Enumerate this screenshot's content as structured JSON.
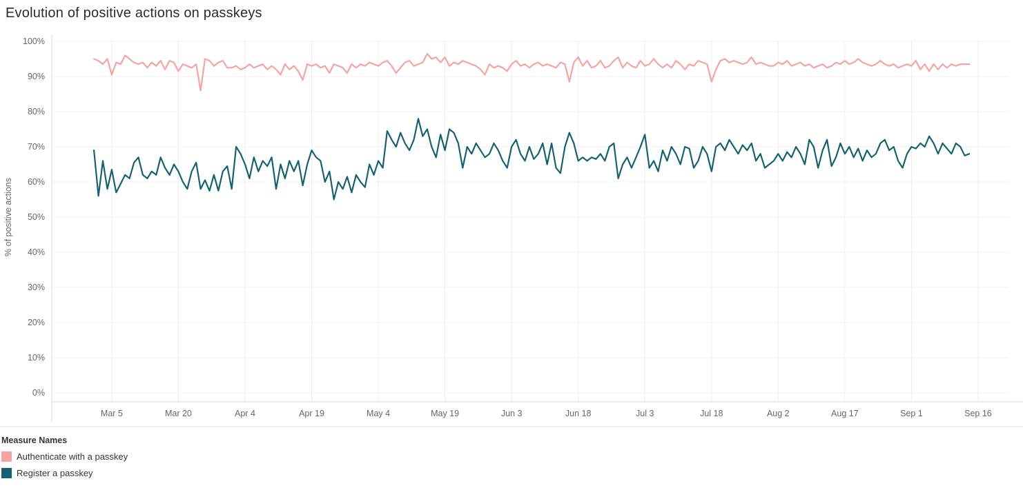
{
  "title": "Evolution of positive actions on passkeys",
  "chart_data": {
    "type": "line",
    "title": "Evolution of positive actions on passkeys",
    "xlabel": "",
    "ylabel": "% of positive actions",
    "ylim": [
      0,
      100
    ],
    "grid": true,
    "legend_position": "bottom-left",
    "legend_title": "Measure Names",
    "x_domain": [
      -9.5,
      206
    ],
    "y_ticks": [
      {
        "value": 0,
        "label": "0%"
      },
      {
        "value": 10,
        "label": "10%"
      },
      {
        "value": 20,
        "label": "20%"
      },
      {
        "value": 30,
        "label": "30%"
      },
      {
        "value": 40,
        "label": "40%"
      },
      {
        "value": 50,
        "label": "50%"
      },
      {
        "value": 60,
        "label": "60%"
      },
      {
        "value": 70,
        "label": "70%"
      },
      {
        "value": 80,
        "label": "80%"
      },
      {
        "value": 90,
        "label": "90%"
      },
      {
        "value": 100,
        "label": "100%"
      }
    ],
    "x_ticks": [
      {
        "index": 4,
        "label": "Mar 5"
      },
      {
        "index": 19,
        "label": "Mar 20"
      },
      {
        "index": 34,
        "label": "Apr 4"
      },
      {
        "index": 49,
        "label": "Apr 19"
      },
      {
        "index": 64,
        "label": "May 4"
      },
      {
        "index": 79,
        "label": "May 19"
      },
      {
        "index": 94,
        "label": "Jun 3"
      },
      {
        "index": 109,
        "label": "Jun 18"
      },
      {
        "index": 124,
        "label": "Jul 3"
      },
      {
        "index": 139,
        "label": "Jul 18"
      },
      {
        "index": 154,
        "label": "Aug 2"
      },
      {
        "index": 169,
        "label": "Aug 17"
      },
      {
        "index": 184,
        "label": "Sep 1"
      },
      {
        "index": 199,
        "label": "Sep 16"
      }
    ],
    "x_start_date": "Mar 1",
    "x_unit": "day",
    "series": [
      {
        "name": "Authenticate with a passkey",
        "color": "#f4a4a0",
        "values": [
          95,
          94.5,
          93.5,
          95,
          90.5,
          94,
          93.5,
          96,
          95,
          94,
          93.5,
          94,
          92.5,
          94,
          93,
          94.5,
          92,
          94.5,
          94,
          91.5,
          93.5,
          93,
          92.5,
          93.5,
          86,
          95,
          94.5,
          93,
          94,
          94.5,
          92.5,
          92.5,
          93,
          92,
          92.5,
          93.5,
          92.5,
          93,
          93.5,
          92,
          93,
          92,
          90.5,
          93.5,
          92,
          93,
          91.5,
          89,
          93.5,
          93,
          93.5,
          92.5,
          93,
          91,
          93.5,
          93,
          92.5,
          91,
          93.5,
          92.5,
          93.5,
          93,
          94,
          93.5,
          93,
          94,
          94.5,
          93,
          91,
          92.5,
          94,
          94.5,
          93,
          93.5,
          94,
          96.5,
          95,
          95.5,
          94,
          95.5,
          93,
          94,
          93.5,
          94.5,
          94,
          93.5,
          93,
          92,
          90.5,
          93.5,
          92.5,
          93,
          92.5,
          91.5,
          93.5,
          94.5,
          93,
          93.5,
          92.5,
          93.5,
          94,
          93,
          93.5,
          93,
          92.5,
          94,
          93.5,
          88.5,
          94,
          95.5,
          93,
          94.5,
          92.5,
          93,
          94.5,
          92.5,
          93,
          94.5,
          95.5,
          92.5,
          94,
          93,
          92.5,
          94.5,
          93,
          93.5,
          95,
          93.5,
          92.5,
          93.5,
          92.5,
          94.5,
          93.5,
          92,
          93.5,
          93,
          94.5,
          94,
          93.5,
          88.5,
          92,
          94.5,
          95,
          94,
          94.5,
          94,
          93.5,
          94,
          95.5,
          93.5,
          94,
          93.5,
          93,
          93,
          94,
          93.5,
          94.5,
          93,
          93.5,
          94,
          93,
          93.5,
          92.5,
          93,
          93.5,
          92.5,
          93,
          94,
          93.5,
          94.5,
          93.5,
          94,
          95,
          94,
          93.5,
          93,
          93.5,
          94.5,
          93.5,
          93,
          93.5,
          92.5,
          93,
          93.5,
          93,
          94.5,
          92,
          93.5,
          91.5,
          93.5,
          92,
          93.5,
          92.5,
          93.5,
          93,
          93.5,
          93.5,
          93.5
        ]
      },
      {
        "name": "Register a passkey",
        "color": "#16616e",
        "values": [
          69,
          56,
          66,
          58,
          63.5,
          57,
          59.5,
          62,
          61,
          65.5,
          67,
          62,
          61,
          63,
          62,
          67,
          64,
          62,
          65,
          63,
          60,
          58,
          63,
          65.5,
          58,
          60.5,
          57.5,
          62,
          57.5,
          63,
          64.5,
          58,
          70,
          68,
          65,
          61,
          67,
          63,
          66,
          64.5,
          67,
          58,
          65,
          61,
          66,
          63,
          66,
          59,
          65,
          69,
          67,
          66,
          60,
          63,
          55,
          60,
          58,
          61.5,
          57,
          62,
          60,
          58.5,
          65,
          62,
          66,
          64,
          74.5,
          72,
          70,
          74,
          71,
          69,
          72,
          78,
          73,
          75,
          70,
          67,
          73.5,
          69,
          75,
          74,
          71,
          64,
          70,
          68,
          71,
          69,
          67,
          68,
          71,
          69,
          66,
          64,
          70,
          72,
          68,
          66,
          70,
          66.5,
          68,
          71,
          65,
          71,
          64,
          62.5,
          70,
          74,
          71,
          66,
          67,
          66,
          67,
          66.5,
          68,
          66,
          70,
          71,
          61,
          65,
          67,
          64,
          67,
          70,
          73.5,
          64,
          66,
          63,
          69,
          66,
          70,
          68,
          65,
          70,
          69.5,
          64,
          66,
          70,
          68,
          63,
          70,
          71,
          69,
          72,
          70,
          68,
          70.5,
          69,
          71,
          66,
          68,
          64,
          65,
          66,
          68,
          66,
          68.5,
          67,
          70,
          68,
          65,
          72,
          70,
          64,
          69,
          72,
          64.5,
          67,
          71,
          68,
          70,
          67,
          69.5,
          66,
          69,
          67,
          68,
          71,
          72,
          69,
          70,
          66,
          64,
          68,
          70,
          69.5,
          71,
          70,
          73,
          71,
          68,
          71,
          69.5,
          68,
          71,
          70,
          67.5,
          68
        ]
      }
    ]
  }
}
